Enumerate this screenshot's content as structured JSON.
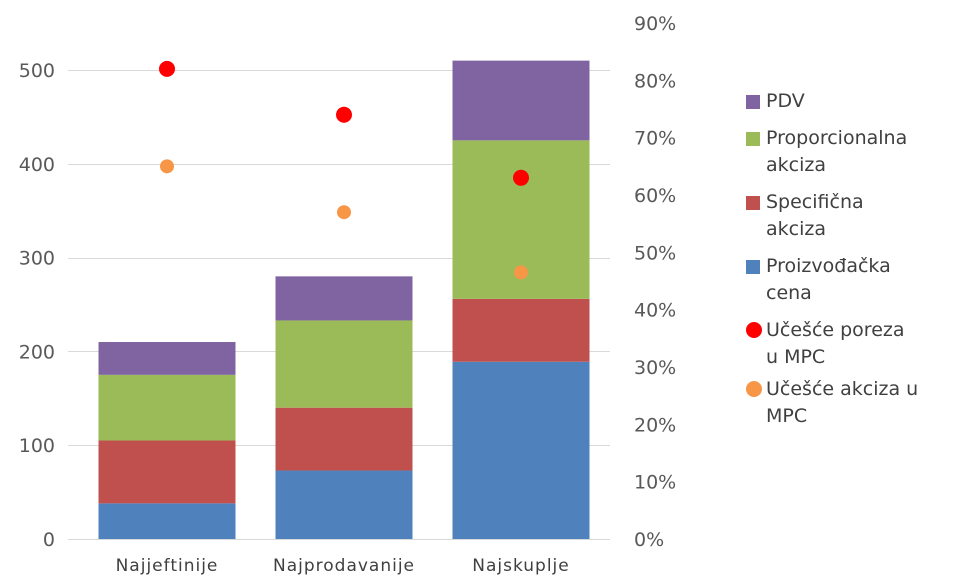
{
  "chart_data": {
    "type": "bar",
    "stacked": true,
    "categories": [
      "Najjeftinije",
      "Najprodavanije",
      "Najskuplje"
    ],
    "series": [
      {
        "name": "Proizvođačka cena",
        "values": [
          38,
          73,
          189
        ],
        "color": "#4F81BD",
        "axis": "left",
        "kind": "bar"
      },
      {
        "name": "Specifična akciza",
        "values": [
          67,
          67,
          67
        ],
        "color": "#C0504D",
        "axis": "left",
        "kind": "bar"
      },
      {
        "name": "Proporcionalna akciza",
        "values": [
          70,
          93,
          169
        ],
        "color": "#9BBB59",
        "axis": "left",
        "kind": "bar"
      },
      {
        "name": "PDV",
        "values": [
          35,
          47,
          85
        ],
        "color": "#8064A2",
        "axis": "left",
        "kind": "bar"
      },
      {
        "name": "Učešće poreza u MPC",
        "values": [
          0.82,
          0.74,
          0.63
        ],
        "color": "#FF0000",
        "axis": "right",
        "kind": "scatter"
      },
      {
        "name": "Učešće akciza u MPC",
        "values": [
          0.65,
          0.57,
          0.465
        ],
        "color": "#F79646",
        "axis": "right",
        "kind": "scatter"
      }
    ],
    "y_left": {
      "ticks": [
        "0",
        "100",
        "200",
        "300",
        "400",
        "500"
      ],
      "range": [
        0,
        550
      ]
    },
    "y_right": {
      "ticks": [
        "0%",
        "10%",
        "20%",
        "30%",
        "40%",
        "50%",
        "60%",
        "70%",
        "80%",
        "90%"
      ],
      "range": [
        0,
        0.9
      ]
    },
    "grid": true,
    "legend_position": "right",
    "title": "",
    "xlabel": "",
    "ylabel": ""
  },
  "legend": [
    {
      "name": "PDV",
      "lines": [
        "PDV"
      ],
      "color": "#8064A2",
      "marker": "square"
    },
    {
      "name": "Proporcionalna akciza",
      "lines": [
        "Proporcionalna",
        "akciza"
      ],
      "color": "#9BBB59",
      "marker": "square"
    },
    {
      "name": "Specifična akciza",
      "lines": [
        "Specifična",
        "akciza"
      ],
      "color": "#C0504D",
      "marker": "square"
    },
    {
      "name": "Proizvođačka cena",
      "lines": [
        "Proizvođačka",
        "cena"
      ],
      "color": "#4F81BD",
      "marker": "square"
    },
    {
      "name": "Učešće poreza u MPC",
      "lines": [
        "Učešće poreza",
        "u MPC"
      ],
      "color": "#FF0000",
      "marker": "circle"
    },
    {
      "name": "Učešće akciza u MPC",
      "lines": [
        "Učešće akciza u",
        "MPC"
      ],
      "color": "#F79646",
      "marker": "circle"
    }
  ]
}
